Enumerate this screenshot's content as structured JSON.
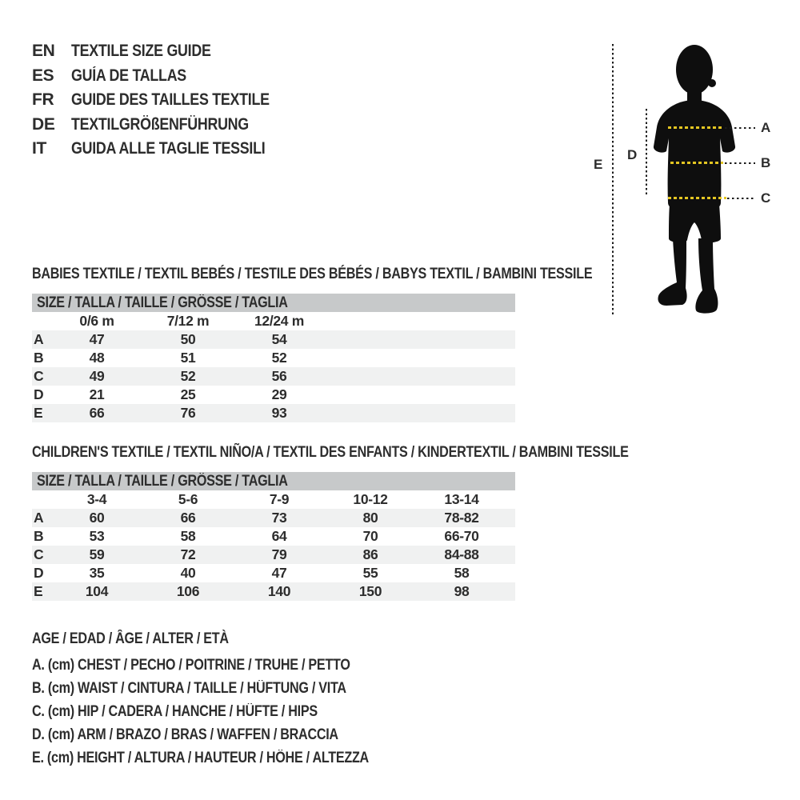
{
  "page": {
    "background": "#ffffff",
    "text_color": "#2d2d2d",
    "table_header_bg": "#c7c9ca",
    "table_stripe_bg": "#f0f1f1",
    "measure_dash_yellow": "#e3c522",
    "silhouette_color": "#0e0e0e"
  },
  "languages": [
    {
      "code": "EN",
      "title": "TEXTILE SIZE GUIDE"
    },
    {
      "code": "ES",
      "title": "GUÍA DE TALLAS"
    },
    {
      "code": "FR",
      "title": "GUIDE DES TAILLES TEXTILE"
    },
    {
      "code": "DE",
      "title": "TEXTILGRÖßENFÜHRUNG"
    },
    {
      "code": "IT",
      "title": "GUIDA ALLE TAGLIE TESSILI"
    }
  ],
  "figure": {
    "description": "child-silhouette-with-measurement-lines",
    "measure_labels": [
      "A",
      "B",
      "C",
      "D",
      "E"
    ]
  },
  "tables": [
    {
      "title": "BABIES TEXTILE / TEXTIL BEBÉS / TESTILE DES BÉBÉS / BABYS TEXTIL / BAMBINI TESSILE",
      "size_header": "SIZE / TALLA / TAILLE / GRÖSSE / TAGLIA",
      "columns": [
        "0/6 m",
        "7/12 m",
        "12/24 m"
      ],
      "rows": [
        {
          "label": "A",
          "values": [
            "47",
            "50",
            "54"
          ]
        },
        {
          "label": "B",
          "values": [
            "48",
            "51",
            "52"
          ]
        },
        {
          "label": "C",
          "values": [
            "49",
            "52",
            "56"
          ]
        },
        {
          "label": "D",
          "values": [
            "21",
            "25",
            "29"
          ]
        },
        {
          "label": "E",
          "values": [
            "66",
            "76",
            "93"
          ]
        }
      ]
    },
    {
      "title": "CHILDREN'S TEXTILE / TEXTIL NIÑO/A / TEXTIL DES ENFANTS / KINDERTEXTIL / BAMBINI TESSILE",
      "size_header": "SIZE / TALLA / TAILLE / GRÖSSE / TAGLIA",
      "columns": [
        "3-4",
        "5-6",
        "7-9",
        "10-12",
        "13-14"
      ],
      "rows": [
        {
          "label": "A",
          "values": [
            "60",
            "66",
            "73",
            "80",
            "78-82"
          ]
        },
        {
          "label": "B",
          "values": [
            "53",
            "58",
            "64",
            "70",
            "66-70"
          ]
        },
        {
          "label": "C",
          "values": [
            "59",
            "72",
            "79",
            "86",
            "84-88"
          ]
        },
        {
          "label": "D",
          "values": [
            "35",
            "40",
            "47",
            "55",
            "58"
          ]
        },
        {
          "label": "E",
          "values": [
            "104",
            "106",
            "140",
            "150",
            "98"
          ]
        }
      ]
    }
  ],
  "legend": {
    "age_line": "AGE / EDAD / ÂGE / ALTER / ETÀ",
    "items": [
      "A. (cm) CHEST / PECHO / POITRINE / TRUHE / PETTO",
      "B. (cm) WAIST / CINTURA / TAILLE / HÜFTUNG / VITA",
      "C. (cm) HIP / CADERA / HANCHE / HÜFTE / HIPS",
      "D. (cm) ARM / BRAZO / BRAS / WAFFEN / BRACCIA",
      "E. (cm) HEIGHT / ALTURA / HAUTEUR / HÖHE / ALTEZZA"
    ]
  }
}
